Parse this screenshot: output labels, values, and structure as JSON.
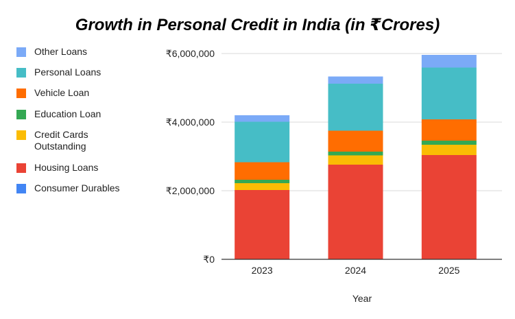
{
  "chart_data": {
    "type": "bar",
    "stacked": true,
    "title": "Growth in Personal Credit in India (in ₹Crores)",
    "xlabel": "Year",
    "ylabel": "",
    "categories": [
      "2023",
      "2024",
      "2025"
    ],
    "ylim": [
      0,
      6000000
    ],
    "yticks": [
      0,
      2000000,
      4000000,
      6000000
    ],
    "ytick_labels": [
      "₹0",
      "₹2,000,000",
      "₹4,000,000",
      "₹6,000,000"
    ],
    "grid": true,
    "legend_position": "left",
    "series": [
      {
        "name": "Consumer Durables",
        "color": "#4285f4",
        "values": [
          0,
          0,
          0
        ]
      },
      {
        "name": "Housing Loans",
        "color": "#ea4335",
        "values": [
          2020000,
          2760000,
          3040000
        ]
      },
      {
        "name": "Credit Cards Outstanding",
        "color": "#fbbc04",
        "values": [
          200000,
          270000,
          300000
        ]
      },
      {
        "name": "Education Loan",
        "color": "#34a853",
        "values": [
          100000,
          110000,
          120000
        ]
      },
      {
        "name": "Vehicle Loan",
        "color": "#ff6d01",
        "values": [
          510000,
          610000,
          620000
        ]
      },
      {
        "name": "Personal Loans",
        "color": "#46bdc6",
        "values": [
          1180000,
          1370000,
          1510000
        ]
      },
      {
        "name": "Other Loans",
        "color": "#7baaf7",
        "values": [
          190000,
          210000,
          370000
        ]
      }
    ],
    "legend_order": [
      "Other Loans",
      "Personal Loans",
      "Vehicle Loan",
      "Education Loan",
      "Credit Cards Outstanding",
      "Housing Loans",
      "Consumer Durables"
    ]
  }
}
